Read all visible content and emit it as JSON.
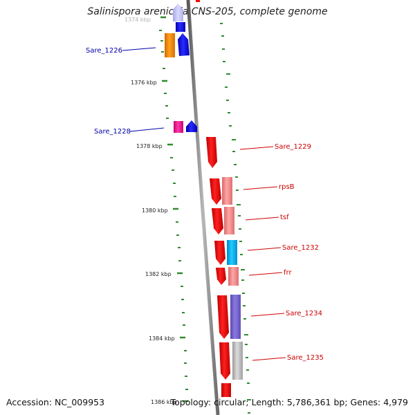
{
  "header": {
    "title": "Salinispora arenicola CNS-205, complete genome"
  },
  "footer": {
    "accession": "Accession: NC_009953",
    "summary": "Topology: circular; Length: 5,786,361 bp; Genes: 4,979"
  },
  "scale": {
    "ticks": [
      "1374 kbp",
      "1376 kbp",
      "1378 kbp",
      "1380 kbp",
      "1382 kbp",
      "1384 kbp",
      "1386 kbp"
    ]
  },
  "genes": {
    "left": [
      "Sare_1226",
      "Sare_1228"
    ],
    "right": [
      "Sare_1229",
      "rpsB",
      "tsf",
      "Sare_1232",
      "frr",
      "Sare_1234",
      "Sare_1235"
    ]
  },
  "colors": {
    "backbone": "#888888",
    "forward": "#ff0000",
    "reverse": "#0000ee",
    "tick": "#2e8b2e",
    "label_left": "#0000aa",
    "label_right": "#cc0000"
  }
}
